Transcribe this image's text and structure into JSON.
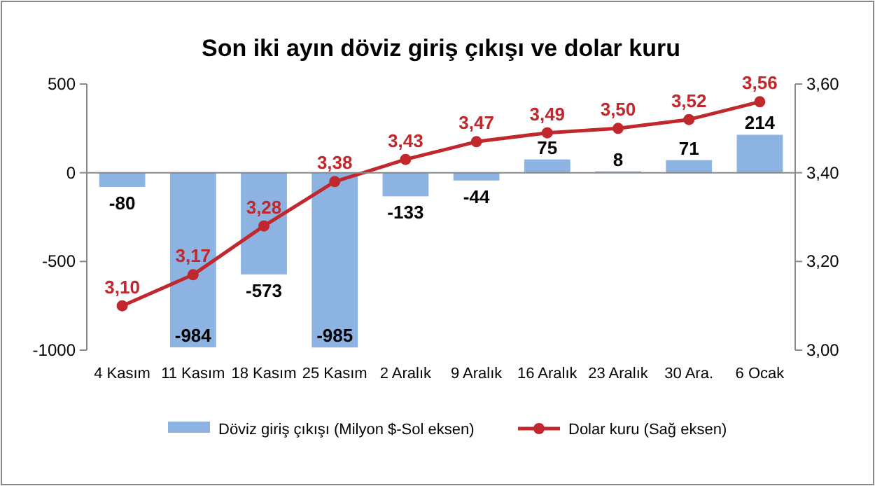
{
  "chart_data": {
    "type": "bar",
    "title": "Son iki ayın döviz giriş çıkışı ve dolar kuru",
    "categories": [
      "4 Kasım",
      "11 Kasım",
      "18 Kasım",
      "25 Kasım",
      "2 Aralık",
      "9 Aralık",
      "16 Aralık",
      "23 Aralık",
      "30 Ara.",
      "6 Ocak"
    ],
    "series": [
      {
        "name": "Döviz giriş çıkışı (Milyon $-Sol eksen)",
        "color": "#8db3e2",
        "values": [
          -80,
          -984,
          -573,
          -985,
          -133,
          -44,
          75,
          8,
          71,
          214
        ],
        "value_labels": [
          "-80",
          "-984",
          "-573",
          "-985",
          "-133",
          "-44",
          "75",
          "8",
          "71",
          "214"
        ]
      },
      {
        "name": "Dolar kuru (Sağ eksen)",
        "type": "line",
        "axis": "y2",
        "color": "#c0282d",
        "marker": "circle",
        "values": [
          3.1,
          3.17,
          3.28,
          3.38,
          3.43,
          3.47,
          3.49,
          3.5,
          3.52,
          3.56
        ],
        "value_labels": [
          "3,10",
          "3,17",
          "3,28",
          "3,38",
          "3,43",
          "3,47",
          "3,49",
          "3,50",
          "3,52",
          "3,56"
        ]
      }
    ],
    "ylim": [
      -1000,
      500
    ],
    "yticks": [
      500,
      0,
      -500,
      -1000
    ],
    "y2lim": [
      3.0,
      3.6
    ],
    "y2ticks": [
      {
        "value": 3.0,
        "label": "3,00"
      },
      {
        "value": 3.2,
        "label": "3,20"
      },
      {
        "value": 3.4,
        "label": "3,40"
      },
      {
        "value": 3.6,
        "label": "3,60"
      }
    ],
    "legend": "bottom"
  }
}
